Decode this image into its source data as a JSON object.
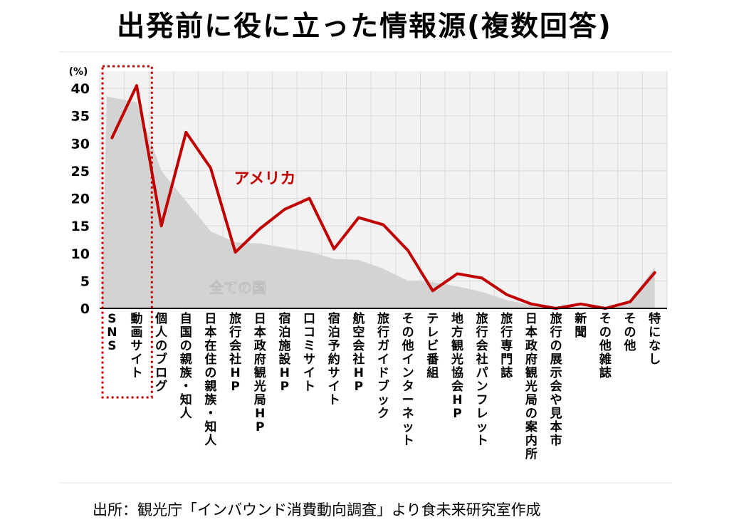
{
  "title": "出発前に役に立った情報源(複数回答)",
  "source": "出所：観光庁「インバウンド消費動向調査」より食未来研究室作成",
  "chart_data": {
    "type": "line",
    "unit_label": "(%)",
    "ylim": [
      0,
      40
    ],
    "yticks": [
      0,
      5,
      10,
      15,
      20,
      25,
      30,
      35,
      40
    ],
    "grid": true,
    "categories": [
      "SNS",
      "動画サイト",
      "個人のブログ",
      "自国の親族・知人",
      "日本在住の親族・知人",
      "旅行会社HP",
      "日本政府観光局HP",
      "宿泊施設HP",
      "口コミサイト",
      "宿泊予約サイト",
      "航空会社HP",
      "旅行ガイドブック",
      "その他インターネット",
      "テレビ番組",
      "地方観光協会HP",
      "旅行会社パンフレット",
      "旅行専門誌",
      "日本政府観光局の案内所",
      "旅行の展示会や見本市",
      "新聞",
      "その他雑誌",
      "その他",
      "特になし"
    ],
    "series": [
      {
        "name": "アメリカ",
        "style": "line",
        "color": "#c00000",
        "values": [
          31,
          40.5,
          15,
          32,
          25.5,
          10.2,
          14.5,
          18,
          20,
          10.8,
          16.5,
          15.2,
          10.5,
          3.2,
          6.3,
          5.5,
          2.5,
          0.8,
          0,
          0.8,
          0,
          1.2,
          6.5
        ]
      },
      {
        "name": "全ての国",
        "style": "area",
        "color": "#d3d3d3",
        "values": [
          38.5,
          37.5,
          25,
          19.5,
          14,
          12,
          11.8,
          11,
          10.3,
          9,
          8.8,
          7.2,
          5,
          4.8,
          4,
          3,
          1.5,
          0.6,
          0.3,
          0.2,
          0.3,
          1.2,
          7.5
        ]
      }
    ],
    "highlight": {
      "style": "dotted-box",
      "color": "#c00000",
      "from_category": 0,
      "to_category": 1
    }
  }
}
